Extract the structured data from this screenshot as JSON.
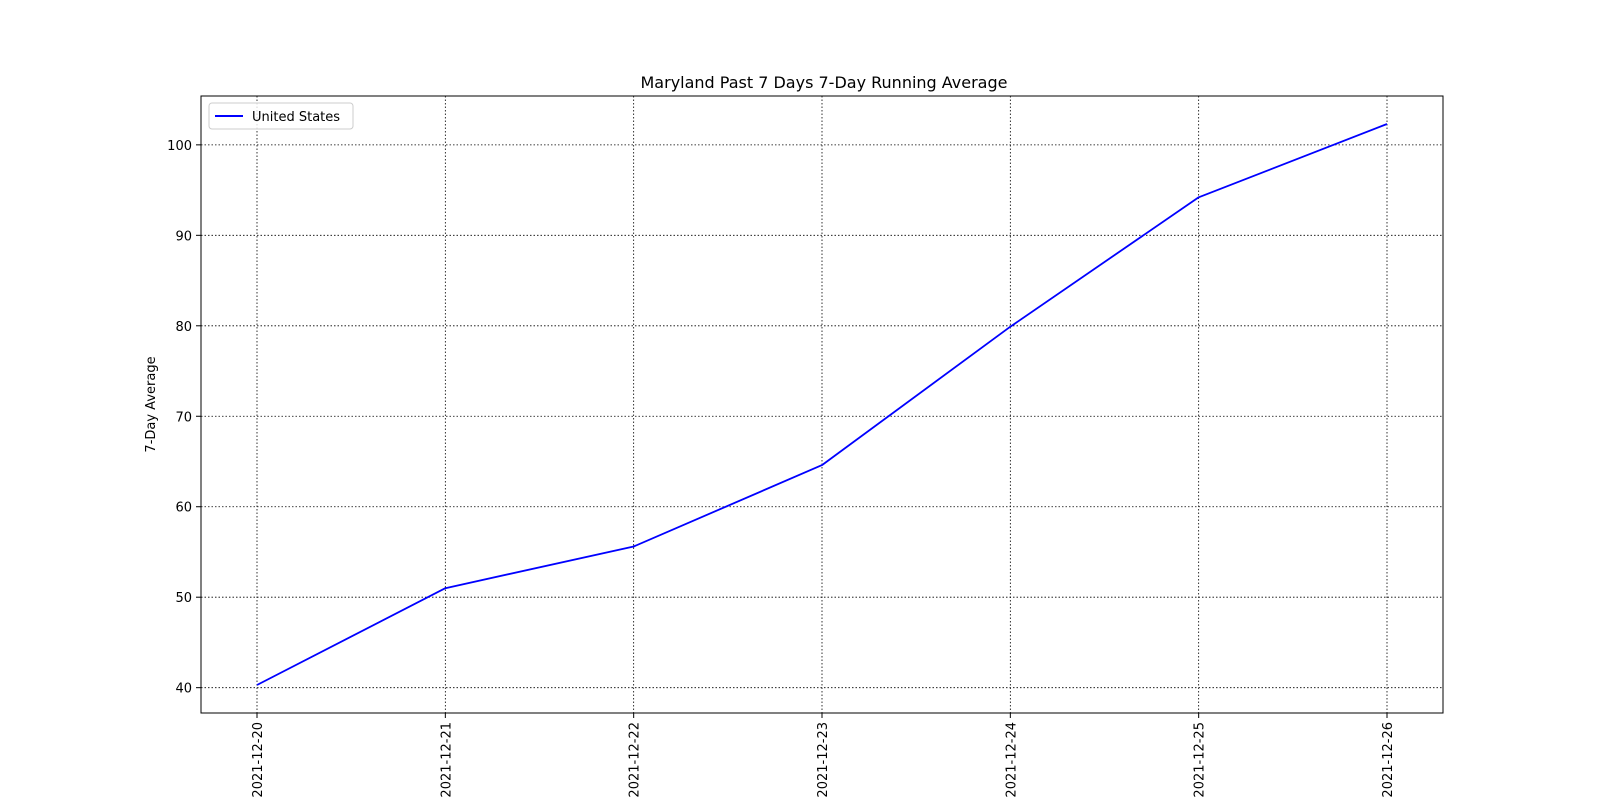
{
  "chart_data": {
    "type": "line",
    "title": "Maryland Past 7 Days 7-Day Running Average",
    "xlabel": "",
    "ylabel": "7-Day Average",
    "x": [
      "2021-12-20",
      "2021-12-21",
      "2021-12-22",
      "2021-12-23",
      "2021-12-24",
      "2021-12-25",
      "2021-12-26"
    ],
    "series": [
      {
        "name": "United States",
        "color": "#0000ff",
        "values": [
          40.3,
          51.0,
          55.6,
          64.6,
          79.9,
          94.2,
          102.3
        ]
      }
    ],
    "yticks": [
      40,
      50,
      60,
      70,
      80,
      90,
      100
    ],
    "ylim": [
      37.2,
      105.4
    ],
    "grid": true,
    "grid_style": "dotted",
    "legend_position": "upper-left"
  }
}
